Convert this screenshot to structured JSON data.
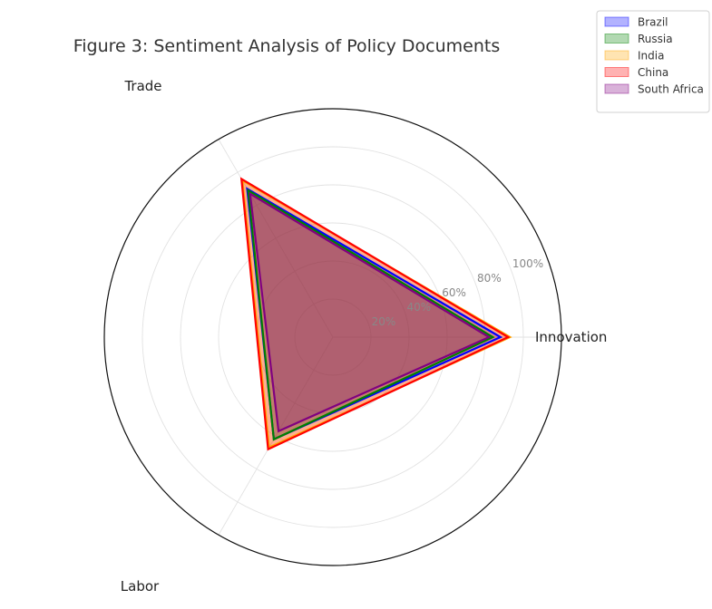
{
  "chart_data": {
    "type": "radar",
    "title": "Figure 3: Sentiment Analysis of Policy Documents",
    "axes": [
      "Innovation",
      "Trade",
      "Labor"
    ],
    "r_ticks": [
      20,
      40,
      60,
      80,
      100
    ],
    "r_tick_labels": [
      "20%",
      "40%",
      "60%",
      "80%",
      "100%"
    ],
    "rlim": [
      0,
      120
    ],
    "grid": true,
    "legend_position": "top-right",
    "series": [
      {
        "name": "Brazil",
        "values": [
          88,
          90,
          62
        ],
        "color": "#0000ff"
      },
      {
        "name": "Russia",
        "values": [
          84,
          89,
          62
        ],
        "color": "#008000"
      },
      {
        "name": "India",
        "values": [
          93,
          95,
          67
        ],
        "color": "#ffa500"
      },
      {
        "name": "China",
        "values": [
          92,
          96,
          68
        ],
        "color": "#ff0000"
      },
      {
        "name": "South Africa",
        "values": [
          82,
          87,
          57
        ],
        "color": "#800080"
      }
    ]
  }
}
